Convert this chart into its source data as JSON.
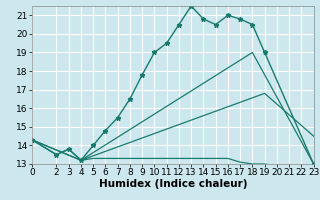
{
  "title": "",
  "xlabel": "Humidex (Indice chaleur)",
  "bg_color": "#cce8ee",
  "grid_color": "#ffffff",
  "line_color": "#1a7a6e",
  "xlim": [
    0,
    23
  ],
  "ylim": [
    13,
    21.5
  ],
  "xticks": [
    0,
    2,
    3,
    4,
    5,
    6,
    7,
    8,
    9,
    10,
    11,
    12,
    13,
    14,
    15,
    16,
    17,
    18,
    19,
    20,
    21,
    22,
    23
  ],
  "yticks": [
    13,
    14,
    15,
    16,
    17,
    18,
    19,
    20,
    21
  ],
  "line1_x": [
    0,
    2,
    3,
    4,
    5,
    6,
    7,
    8,
    9,
    10,
    11,
    12,
    13,
    14,
    15,
    16,
    17,
    18,
    19,
    23
  ],
  "line1_y": [
    14.3,
    13.5,
    13.8,
    13.2,
    14.0,
    14.8,
    15.5,
    16.5,
    17.8,
    19.0,
    19.5,
    20.5,
    21.5,
    20.8,
    20.5,
    21.0,
    20.8,
    20.5,
    19.0,
    13.0
  ],
  "line2_x": [
    0,
    2,
    3,
    4,
    5,
    6,
    7,
    8,
    9,
    10,
    11,
    12,
    13,
    14,
    15,
    16,
    17,
    18,
    19,
    20,
    21,
    22,
    23
  ],
  "line2_y": [
    14.3,
    13.5,
    13.8,
    13.2,
    13.3,
    13.3,
    13.3,
    13.3,
    13.3,
    13.3,
    13.3,
    13.3,
    13.3,
    13.3,
    13.3,
    13.3,
    13.1,
    13.0,
    13.0,
    12.9,
    12.9,
    12.9,
    12.9
  ],
  "line3_x": [
    0,
    4,
    18,
    23
  ],
  "line3_y": [
    14.3,
    13.2,
    19.0,
    13.0
  ],
  "line4_x": [
    0,
    4,
    19,
    23
  ],
  "line4_y": [
    14.3,
    13.2,
    16.8,
    14.5
  ],
  "tick_fontsize": 6.5,
  "label_fontsize": 7.5
}
